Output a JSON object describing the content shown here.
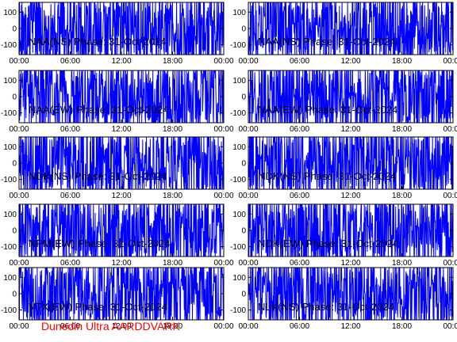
{
  "chart_data": [
    {
      "type": "line",
      "title": "NAA(NS) Phase: 31-Oct-2024",
      "yticks": [
        100,
        0,
        -100
      ],
      "ylim": [
        -160,
        160
      ],
      "xticks": [
        "00:00",
        "06:00",
        "12:00",
        "18:00",
        "00:00"
      ],
      "series_color": "#0000ff"
    },
    {
      "type": "line",
      "title": "NAA(NS) Phase: 31-Oct-2024",
      "yticks": [
        100,
        0,
        -100
      ],
      "ylim": [
        -160,
        160
      ],
      "xticks": [
        "00:00",
        "06:00",
        "12:00",
        "18:00",
        "00:00"
      ],
      "series_color": "#0000ff"
    },
    {
      "type": "line",
      "title": "NAA(EW) Phase: 31-Oct-2024",
      "yticks": [
        100,
        0,
        -100
      ],
      "ylim": [
        -160,
        160
      ],
      "xticks": [
        "00:00",
        "06:00",
        "12:00",
        "18:00",
        "00:00"
      ],
      "series_color": "#0000ff"
    },
    {
      "type": "line",
      "title": "NAA(EW) Phase: 31-Oct-2024",
      "yticks": [
        100,
        0,
        -100
      ],
      "ylim": [
        -160,
        160
      ],
      "xticks": [
        "00:00",
        "06:00",
        "12:00",
        "18:00",
        "00:00"
      ],
      "series_color": "#0000ff"
    },
    {
      "type": "line",
      "title": "NDK(NS) Phase: 31-Oct-2024",
      "yticks": [
        100,
        0,
        -100
      ],
      "ylim": [
        -160,
        160
      ],
      "xticks": [
        "00:00",
        "06:00",
        "12:00",
        "18:00",
        "00:00"
      ],
      "series_color": "#0000ff"
    },
    {
      "type": "line",
      "title": "NDK(NS) Phase: 31-Oct-2024",
      "yticks": [
        100,
        0,
        -100
      ],
      "ylim": [
        -160,
        160
      ],
      "xticks": [
        "00:00",
        "06:00",
        "12:00",
        "18:00",
        "00:00"
      ],
      "series_color": "#0000ff"
    },
    {
      "type": "line",
      "title": "NPM(EW) Phase: 31-Oct-2024",
      "yticks": [
        100,
        0,
        -100
      ],
      "ylim": [
        -160,
        160
      ],
      "xticks": [
        "00:00",
        "06:00",
        "12:00",
        "18:00",
        "00:00"
      ],
      "series_color": "#0000ff"
    },
    {
      "type": "line",
      "title": "NDK(EW) Phase: 31-Oct-2024",
      "yticks": [
        100,
        0,
        -100
      ],
      "ylim": [
        -160,
        160
      ],
      "xticks": [
        "00:00",
        "06:00",
        "12:00",
        "18:00",
        "00:00"
      ],
      "series_color": "#0000ff"
    },
    {
      "type": "line",
      "title": "VTX(EW) Phase: 31-Oct-2024",
      "yticks": [
        100,
        0,
        -100
      ],
      "ylim": [
        -160,
        160
      ],
      "xticks": [
        "00:00",
        "06:00",
        "12:00",
        "18:00",
        "00:00"
      ],
      "series_color": "#0000ff"
    },
    {
      "type": "line",
      "title": "NLK(NS) Phase: 31-Oct-2024",
      "yticks": [
        100,
        0,
        -100
      ],
      "ylim": [
        -160,
        160
      ],
      "xticks": [
        "00:00",
        "06:00",
        "12:00",
        "18:00",
        "00:00"
      ],
      "series_color": "#0000ff"
    }
  ],
  "footer": {
    "text": "Dunedin Ultra AARDDVARK",
    "color": "#ff0000"
  }
}
